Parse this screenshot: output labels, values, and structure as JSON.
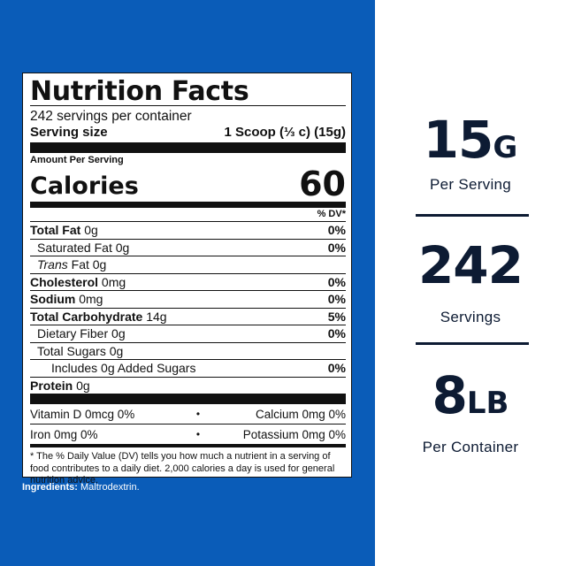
{
  "label": {
    "title": "Nutrition Facts",
    "servings_per_container": "242 servings per container",
    "serving_size_label": "Serving size",
    "serving_size_value": "1 Scoop (⅓ c) (15g)",
    "amount_per_serving": "Amount Per Serving",
    "calories_label": "Calories",
    "calories_value": "60",
    "dv_header": "% DV*",
    "nutrients": [
      {
        "name": "Total Fat",
        "amount": "0g",
        "dv": "0%"
      },
      {
        "name": "Saturated Fat",
        "amount": "0g",
        "dv": "0%"
      },
      {
        "name": "Trans",
        "name_suffix": "Fat",
        "amount": "0g",
        "dv": ""
      },
      {
        "name": "Cholesterol",
        "amount": "0mg",
        "dv": "0%"
      },
      {
        "name": "Sodium",
        "amount": "0mg",
        "dv": "0%"
      },
      {
        "name": "Total Carbohydrate",
        "amount": "14g",
        "dv": "5%"
      },
      {
        "name": "Dietary Fiber",
        "amount": "0g",
        "dv": "0%"
      },
      {
        "name": "Total Sugars",
        "amount": "0g",
        "dv": ""
      },
      {
        "name": "Includes 0g Added Sugars",
        "amount": "",
        "dv": "0%"
      },
      {
        "name": "Protein",
        "amount": "0g",
        "dv": ""
      }
    ],
    "vitamins": [
      {
        "left": "Vitamin D 0mcg 0%",
        "right": "Calcium 0mg 0%"
      },
      {
        "left": "Iron 0mg 0%",
        "right": "Potassium 0mg 0%"
      }
    ],
    "bullet": "•",
    "footnote": "* The % Daily Value (DV) tells you how much a nutrient in a serving of food contributes to a daily diet. 2,000 calories a day is used for general nutrition advice."
  },
  "ingredients": {
    "label": "Ingredients:",
    "text": "Maltrodextrin."
  },
  "stats": [
    {
      "value": "15",
      "unit": "G",
      "caption": "Per Serving"
    },
    {
      "value": "242",
      "unit": "",
      "caption": "Servings"
    },
    {
      "value": "8",
      "unit": "LB",
      "caption": "Per Container"
    }
  ],
  "colors": {
    "panel_blue": "#0a5cb8",
    "navy_text": "#0d1b33"
  }
}
